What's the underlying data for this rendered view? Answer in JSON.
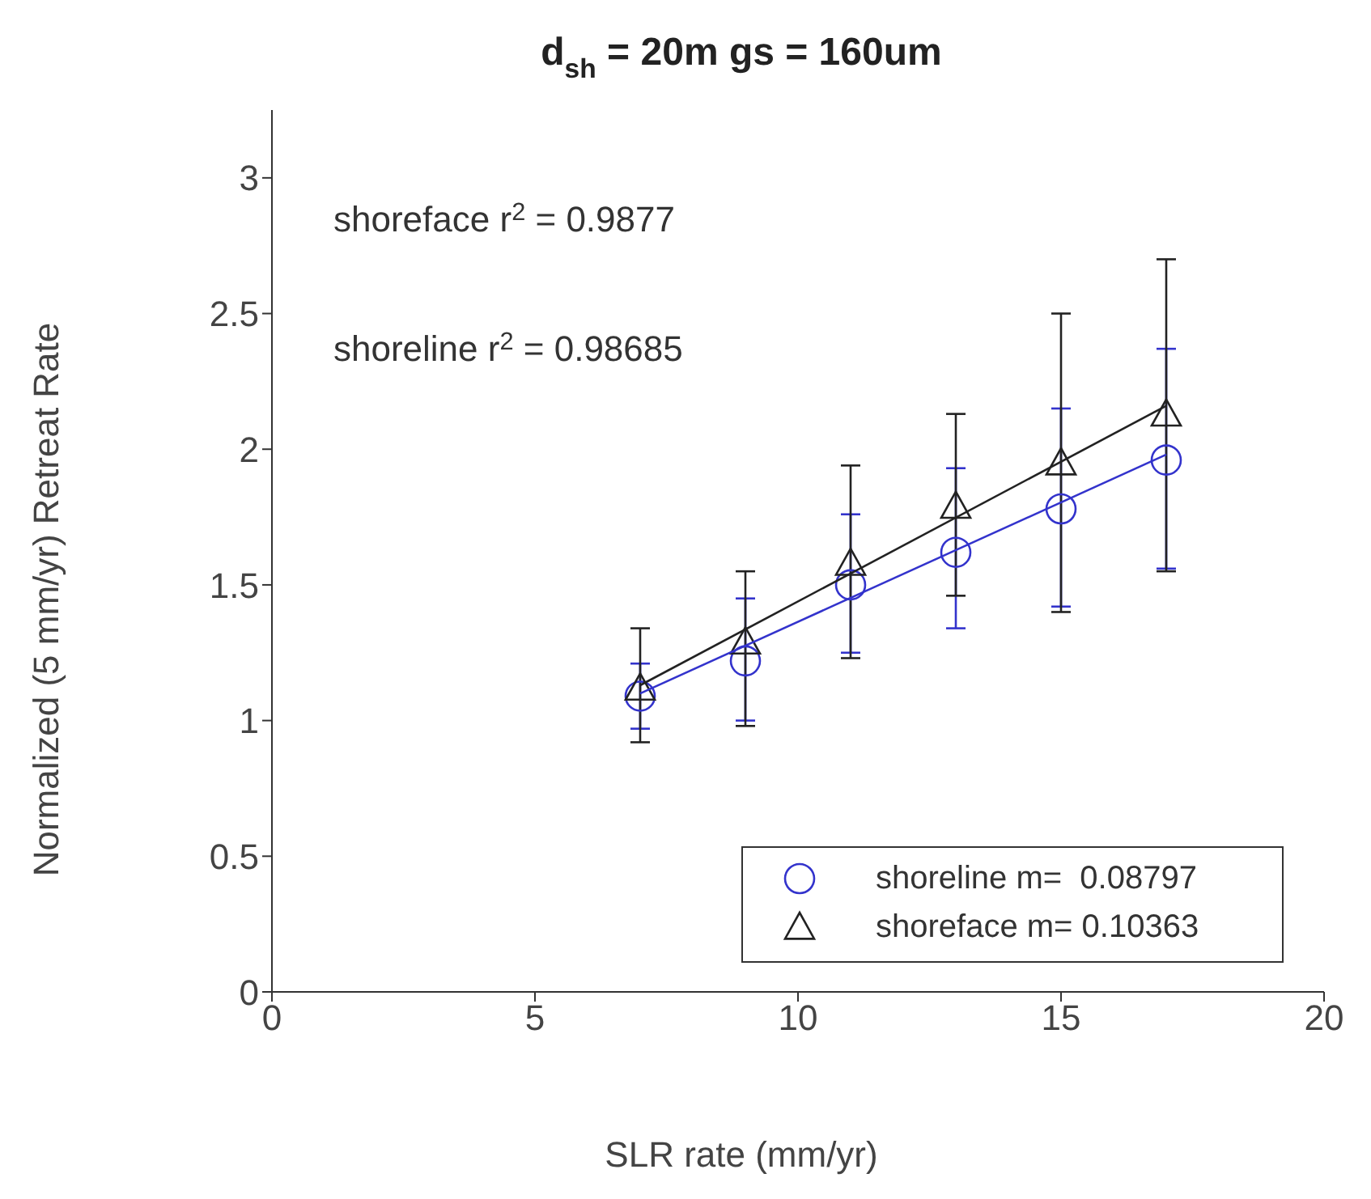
{
  "chart_data": {
    "type": "scatter",
    "title": "d$_{sh}$ = 20m gs = 160um",
    "xlabel": "SLR rate (mm/yr)",
    "ylabel": "Normalized (5 mm/yr) Retreat Rate",
    "xlim": [
      0,
      20
    ],
    "xticks": [
      0,
      5,
      10,
      15,
      20
    ],
    "ylim": [
      0,
      3.25
    ],
    "yticks": [
      0,
      0.5,
      1,
      1.5,
      2,
      2.5,
      3
    ],
    "grid": false,
    "legend": "bottom right",
    "annotations": [
      "shoreface r$^{2}$ = 0.9877",
      "shoreline r$^{2}$ = 0.98685"
    ],
    "series": [
      {
        "name": "shoreline m=  0.08797",
        "marker": "circle",
        "color": "#3333cc",
        "x": [
          7,
          9,
          11,
          13,
          15,
          17
        ],
        "values": [
          1.09,
          1.22,
          1.5,
          1.62,
          1.78,
          1.96
        ],
        "errors": [
          [
            0.97,
            1.21
          ],
          [
            1.0,
            1.45
          ],
          [
            1.25,
            1.76
          ],
          [
            1.34,
            1.93
          ],
          [
            1.42,
            2.15
          ],
          [
            1.56,
            2.37
          ]
        ]
      },
      {
        "name": "shoreface m= 0.10363",
        "marker": "triangle",
        "color": "#222222",
        "x": [
          7,
          9,
          11,
          13,
          15,
          17
        ],
        "values": [
          1.12,
          1.29,
          1.58,
          1.79,
          1.95,
          2.13
        ],
        "errors": [
          [
            0.92,
            1.34
          ],
          [
            0.98,
            1.55
          ],
          [
            1.23,
            1.94
          ],
          [
            1.46,
            2.13
          ],
          [
            1.4,
            2.5
          ],
          [
            1.55,
            2.7
          ]
        ]
      },
      {
        "type": "line",
        "marker": "none",
        "color": "#3333cc",
        "x": [
          7,
          17
        ],
        "values": [
          1.1,
          1.98
        ]
      },
      {
        "type": "line",
        "marker": "none",
        "color": "#222222",
        "x": [
          7,
          17
        ],
        "values": [
          1.13,
          2.16
        ]
      }
    ]
  }
}
